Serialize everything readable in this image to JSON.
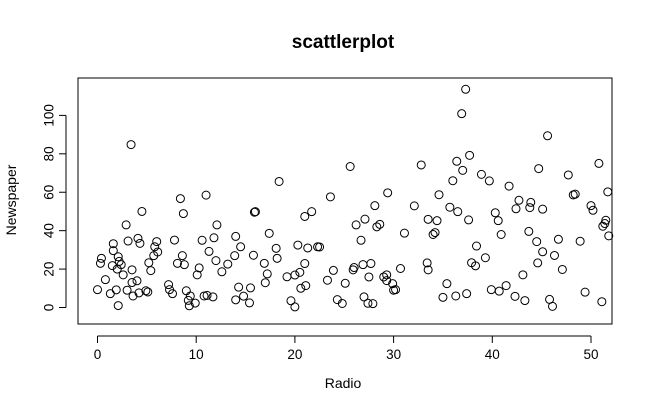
{
  "chart_data": {
    "type": "scatter",
    "title": "scattlerplot",
    "xlabel": "Radio",
    "ylabel": "Newspaper",
    "xlim": [
      0,
      50
    ],
    "ylim": [
      0,
      114
    ],
    "xticks": [
      "0",
      "10",
      "20",
      "30",
      "40",
      "50"
    ],
    "yticks": [
      "0",
      "20",
      "40",
      "60",
      "80",
      "100"
    ],
    "grid": false,
    "legend": "none",
    "points": [
      [
        0.0,
        9.3
      ],
      [
        0.3,
        23.0
      ],
      [
        0.4,
        25.6
      ],
      [
        0.8,
        14.5
      ],
      [
        1.3,
        7.2
      ],
      [
        1.5,
        21.8
      ],
      [
        1.6,
        29.6
      ],
      [
        1.6,
        33.2
      ],
      [
        1.9,
        9.2
      ],
      [
        2.0,
        20.0
      ],
      [
        2.1,
        1.0
      ],
      [
        2.1,
        26.4
      ],
      [
        2.2,
        24.0
      ],
      [
        2.4,
        22.3
      ],
      [
        2.6,
        17.0
      ],
      [
        2.9,
        43.0
      ],
      [
        3.0,
        9.0
      ],
      [
        3.1,
        34.6
      ],
      [
        3.4,
        84.8
      ],
      [
        3.5,
        13.0
      ],
      [
        3.5,
        19.6
      ],
      [
        3.6,
        6.0
      ],
      [
        4.0,
        13.9
      ],
      [
        4.1,
        36.0
      ],
      [
        4.2,
        7.6
      ],
      [
        4.3,
        33.4
      ],
      [
        4.5,
        50.0
      ],
      [
        4.9,
        8.7
      ],
      [
        5.1,
        8.1
      ],
      [
        5.2,
        23.3
      ],
      [
        5.4,
        19.2
      ],
      [
        5.7,
        27.0
      ],
      [
        5.8,
        31.6
      ],
      [
        6.0,
        34.3
      ],
      [
        6.1,
        28.9
      ],
      [
        7.2,
        11.9
      ],
      [
        7.3,
        9.3
      ],
      [
        7.6,
        7.2
      ],
      [
        7.8,
        35.1
      ],
      [
        8.1,
        23.0
      ],
      [
        8.4,
        56.7
      ],
      [
        8.6,
        27.0
      ],
      [
        8.7,
        48.9
      ],
      [
        8.8,
        22.3
      ],
      [
        9.0,
        8.7
      ],
      [
        9.2,
        3.7
      ],
      [
        9.3,
        0.9
      ],
      [
        9.4,
        6.0
      ],
      [
        9.9,
        2.3
      ],
      [
        10.1,
        17.0
      ],
      [
        10.3,
        20.6
      ],
      [
        10.6,
        35.0
      ],
      [
        10.8,
        6.0
      ],
      [
        11.0,
        58.5
      ],
      [
        11.1,
        6.3
      ],
      [
        11.3,
        29.2
      ],
      [
        11.7,
        5.5
      ],
      [
        11.8,
        36.3
      ],
      [
        12.0,
        24.4
      ],
      [
        12.1,
        43.0
      ],
      [
        12.6,
        18.6
      ],
      [
        13.2,
        22.6
      ],
      [
        13.9,
        27.0
      ],
      [
        14.0,
        4.0
      ],
      [
        14.0,
        37.0
      ],
      [
        14.3,
        10.6
      ],
      [
        14.5,
        31.6
      ],
      [
        14.8,
        5.9
      ],
      [
        15.4,
        2.4
      ],
      [
        15.5,
        10.2
      ],
      [
        15.8,
        27.2
      ],
      [
        15.9,
        49.6
      ],
      [
        16.0,
        49.9
      ],
      [
        16.9,
        23.0
      ],
      [
        17.0,
        12.9
      ],
      [
        17.2,
        17.5
      ],
      [
        17.4,
        38.6
      ],
      [
        18.1,
        30.8
      ],
      [
        18.2,
        25.6
      ],
      [
        18.4,
        65.6
      ],
      [
        19.2,
        16.0
      ],
      [
        19.6,
        3.5
      ],
      [
        20.0,
        0.3
      ],
      [
        20.0,
        16.9
      ],
      [
        20.3,
        32.5
      ],
      [
        20.5,
        18.3
      ],
      [
        20.6,
        10.0
      ],
      [
        21.0,
        47.4
      ],
      [
        21.0,
        22.9
      ],
      [
        21.1,
        11.4
      ],
      [
        21.3,
        31.0
      ],
      [
        21.7,
        49.9
      ],
      [
        22.3,
        31.6
      ],
      [
        22.5,
        31.5
      ],
      [
        23.3,
        14.2
      ],
      [
        23.6,
        57.6
      ],
      [
        23.9,
        19.3
      ],
      [
        24.3,
        4.1
      ],
      [
        24.8,
        2.1
      ],
      [
        25.1,
        12.6
      ],
      [
        25.6,
        73.4
      ],
      [
        25.9,
        19.6
      ],
      [
        26.0,
        20.8
      ],
      [
        26.2,
        43.0
      ],
      [
        26.7,
        35.0
      ],
      [
        26.9,
        22.3
      ],
      [
        27.0,
        5.5
      ],
      [
        27.1,
        46.0
      ],
      [
        27.4,
        2.2
      ],
      [
        27.5,
        15.9
      ],
      [
        27.7,
        22.9
      ],
      [
        27.9,
        2.0
      ],
      [
        28.1,
        53.0
      ],
      [
        28.3,
        42.0
      ],
      [
        28.6,
        43.3
      ],
      [
        29.0,
        15.9
      ],
      [
        29.3,
        17.0
      ],
      [
        29.3,
        14.0
      ],
      [
        29.4,
        59.7
      ],
      [
        29.9,
        12.4
      ],
      [
        30.0,
        9.0
      ],
      [
        30.2,
        9.3
      ],
      [
        30.7,
        20.3
      ],
      [
        31.1,
        38.7
      ],
      [
        32.1,
        52.9
      ],
      [
        32.8,
        74.2
      ],
      [
        33.4,
        23.2
      ],
      [
        33.5,
        19.6
      ],
      [
        33.5,
        45.9
      ],
      [
        34.0,
        38.0
      ],
      [
        34.2,
        39.0
      ],
      [
        34.4,
        45.2
      ],
      [
        34.6,
        58.7
      ],
      [
        35.0,
        5.3
      ],
      [
        35.4,
        12.4
      ],
      [
        35.7,
        52.2
      ],
      [
        36.0,
        66.0
      ],
      [
        36.3,
        6.0
      ],
      [
        36.4,
        76.1
      ],
      [
        36.5,
        49.9
      ],
      [
        36.9,
        100.9
      ],
      [
        37.0,
        71.4
      ],
      [
        37.3,
        113.6
      ],
      [
        37.4,
        7.2
      ],
      [
        37.6,
        45.6
      ],
      [
        37.7,
        79.2
      ],
      [
        37.9,
        23.3
      ],
      [
        38.3,
        21.7
      ],
      [
        38.4,
        32.0
      ],
      [
        38.9,
        69.3
      ],
      [
        39.3,
        25.9
      ],
      [
        39.7,
        65.9
      ],
      [
        39.9,
        9.3
      ],
      [
        40.3,
        49.3
      ],
      [
        40.6,
        45.2
      ],
      [
        40.7,
        8.5
      ],
      [
        40.9,
        38.0
      ],
      [
        41.4,
        11.4
      ],
      [
        41.7,
        63.2
      ],
      [
        42.3,
        5.8
      ],
      [
        42.4,
        51.4
      ],
      [
        42.7,
        55.8
      ],
      [
        43.1,
        17.0
      ],
      [
        43.3,
        3.6
      ],
      [
        43.7,
        39.6
      ],
      [
        43.8,
        52.0
      ],
      [
        43.9,
        54.7
      ],
      [
        44.5,
        34.3
      ],
      [
        44.6,
        23.2
      ],
      [
        44.7,
        72.3
      ],
      [
        45.1,
        51.2
      ],
      [
        45.1,
        29.0
      ],
      [
        45.6,
        89.4
      ],
      [
        45.8,
        4.2
      ],
      [
        46.1,
        0.6
      ],
      [
        46.3,
        27.1
      ],
      [
        46.7,
        35.5
      ],
      [
        47.1,
        19.8
      ],
      [
        47.7,
        69.0
      ],
      [
        48.2,
        58.6
      ],
      [
        48.4,
        59.0
      ],
      [
        48.9,
        34.5
      ],
      [
        49.4,
        8.0
      ],
      [
        50.0,
        53.0
      ],
      [
        50.2,
        50.6
      ],
      [
        50.8,
        75.0
      ],
      [
        51.1,
        3.0
      ],
      [
        51.2,
        42.3
      ],
      [
        51.4,
        43.7
      ],
      [
        51.5,
        45.4
      ],
      [
        51.7,
        60.2
      ],
      [
        51.8,
        37.3
      ]
    ]
  }
}
